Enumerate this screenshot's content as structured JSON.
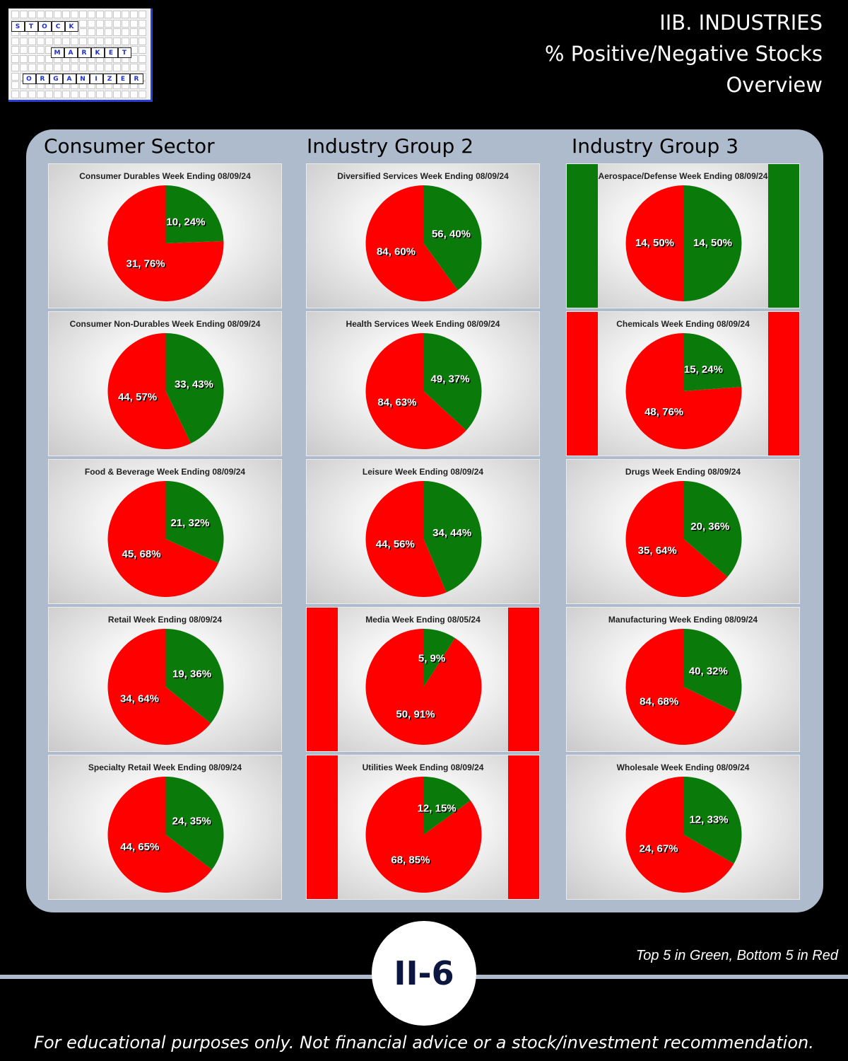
{
  "logo": {
    "words": [
      "STOCK",
      "MARKET",
      "ORGANIZER"
    ]
  },
  "header": {
    "line1": "IIB. INDUSTRIES",
    "line2": "% Positive/Negative Stocks",
    "line3": "Overview"
  },
  "columns": [
    "Consumer Sector",
    "Industry Group 2",
    "Industry Group 3"
  ],
  "colors": {
    "positive": "#0a7a0a",
    "negative": "#ff0000",
    "panel": "#adbbcc"
  },
  "chart_data": [
    {
      "type": "pie",
      "title": "Consumer Durables Week Ending 08/09/24",
      "positive": {
        "count": 10,
        "pct": 24,
        "label": "10, 24%"
      },
      "negative": {
        "count": 31,
        "pct": 76,
        "label": "31, 76%"
      },
      "highlight": "none"
    },
    {
      "type": "pie",
      "title": "Consumer Non-Durables Week Ending 08/09/24",
      "positive": {
        "count": 33,
        "pct": 43,
        "label": "33, 43%"
      },
      "negative": {
        "count": 44,
        "pct": 57,
        "label": "44, 57%"
      },
      "highlight": "none"
    },
    {
      "type": "pie",
      "title": "Food & Beverage Week Ending 08/09/24",
      "positive": {
        "count": 21,
        "pct": 32,
        "label": "21, 32%"
      },
      "negative": {
        "count": 45,
        "pct": 68,
        "label": "45, 68%"
      },
      "highlight": "none"
    },
    {
      "type": "pie",
      "title": "Retail Week Ending 08/09/24",
      "positive": {
        "count": 19,
        "pct": 36,
        "label": "19, 36%"
      },
      "negative": {
        "count": 34,
        "pct": 64,
        "label": "34, 64%"
      },
      "highlight": "none"
    },
    {
      "type": "pie",
      "title": "Specialty Retail Week Ending 08/09/24",
      "positive": {
        "count": 24,
        "pct": 35,
        "label": "24, 35%"
      },
      "negative": {
        "count": 44,
        "pct": 65,
        "label": "44, 65%"
      },
      "highlight": "none"
    },
    {
      "type": "pie",
      "title": "Diversified Services Week Ending 08/09/24",
      "positive": {
        "count": 56,
        "pct": 40,
        "label": "56, 40%"
      },
      "negative": {
        "count": 84,
        "pct": 60,
        "label": "84, 60%"
      },
      "highlight": "none"
    },
    {
      "type": "pie",
      "title": "Health Services Week Ending 08/09/24",
      "positive": {
        "count": 49,
        "pct": 37,
        "label": "49, 37%"
      },
      "negative": {
        "count": 84,
        "pct": 63,
        "label": "84, 63%"
      },
      "highlight": "none"
    },
    {
      "type": "pie",
      "title": "Leisure Week Ending 08/09/24",
      "positive": {
        "count": 34,
        "pct": 44,
        "label": "34, 44%"
      },
      "negative": {
        "count": 44,
        "pct": 56,
        "label": "44, 56%"
      },
      "highlight": "none"
    },
    {
      "type": "pie",
      "title": "Media Week Ending 08/05/24",
      "positive": {
        "count": 5,
        "pct": 9,
        "label": "5, 9%"
      },
      "negative": {
        "count": 50,
        "pct": 91,
        "label": "50, 91%"
      },
      "highlight": "bottom"
    },
    {
      "type": "pie",
      "title": "Utilities Week Ending 08/09/24",
      "positive": {
        "count": 12,
        "pct": 15,
        "label": "12, 15%"
      },
      "negative": {
        "count": 68,
        "pct": 85,
        "label": "68, 85%"
      },
      "highlight": "bottom"
    },
    {
      "type": "pie",
      "title": "Aerospace/Defense Week Ending 08/09/24",
      "positive": {
        "count": 14,
        "pct": 50,
        "label": "14, 50%"
      },
      "negative": {
        "count": 14,
        "pct": 50,
        "label": "14, 50%"
      },
      "highlight": "top"
    },
    {
      "type": "pie",
      "title": "Chemicals Week Ending 08/09/24",
      "positive": {
        "count": 15,
        "pct": 24,
        "label": "15, 24%"
      },
      "negative": {
        "count": 48,
        "pct": 76,
        "label": "48, 76%"
      },
      "highlight": "bottom"
    },
    {
      "type": "pie",
      "title": "Drugs Week Ending 08/09/24",
      "positive": {
        "count": 20,
        "pct": 36,
        "label": "20, 36%"
      },
      "negative": {
        "count": 35,
        "pct": 64,
        "label": "35, 64%"
      },
      "highlight": "none"
    },
    {
      "type": "pie",
      "title": "Manufacturing Week Ending 08/09/24",
      "positive": {
        "count": 40,
        "pct": 32,
        "label": "40, 32%"
      },
      "negative": {
        "count": 84,
        "pct": 68,
        "label": "84, 68%"
      },
      "highlight": "none"
    },
    {
      "type": "pie",
      "title": "Wholesale Week Ending 08/09/24",
      "positive": {
        "count": 12,
        "pct": 33,
        "label": "12, 33%"
      },
      "negative": {
        "count": 24,
        "pct": 67,
        "label": "24, 67%"
      },
      "highlight": "none"
    }
  ],
  "badge": "II-6",
  "legend_note": "Top 5 in Green, Bottom 5 in Red",
  "disclaimer": "For educational purposes only. Not financial advice or a stock/investment recommendation."
}
